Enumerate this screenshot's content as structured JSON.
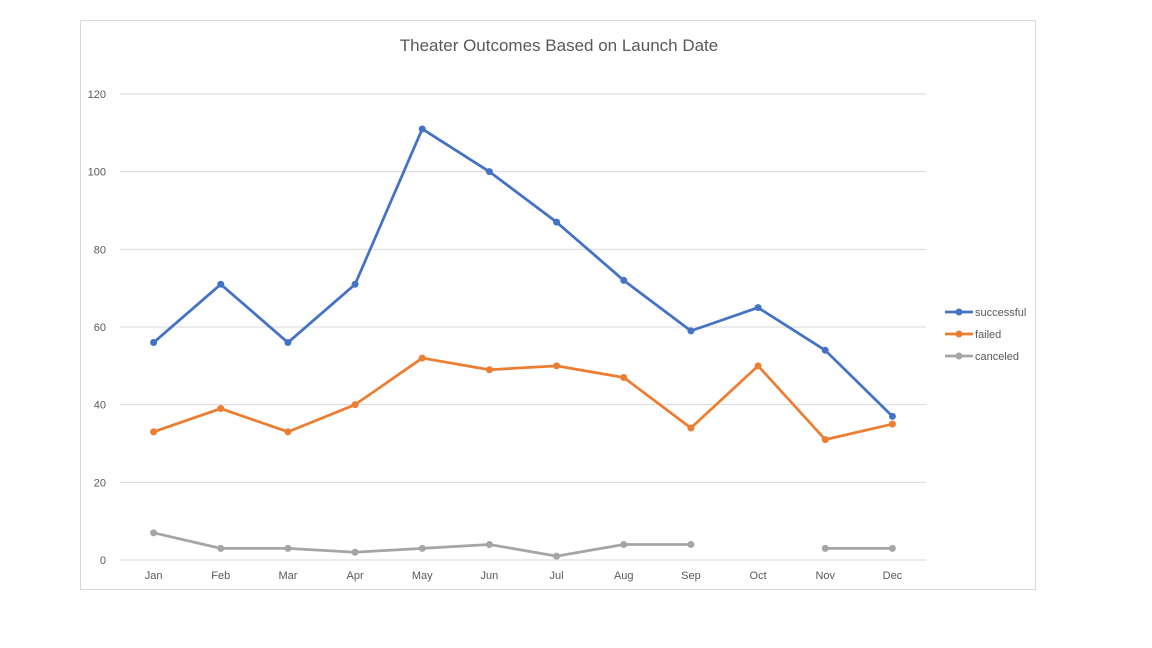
{
  "chart_data": {
    "type": "line",
    "title": "Theater Outcomes Based on Launch Date",
    "xlabel": "",
    "ylabel": "",
    "categories": [
      "Jan",
      "Feb",
      "Mar",
      "Apr",
      "May",
      "Jun",
      "Jul",
      "Aug",
      "Sep",
      "Oct",
      "Nov",
      "Dec"
    ],
    "ylim": [
      0,
      120
    ],
    "yticks": [
      0,
      20,
      40,
      60,
      80,
      100,
      120
    ],
    "grid": true,
    "legend_position": "right",
    "series": [
      {
        "name": "successful",
        "color": "#4472c4",
        "values": [
          56,
          71,
          56,
          71,
          111,
          100,
          87,
          72,
          59,
          65,
          54,
          37
        ]
      },
      {
        "name": "failed",
        "color": "#ed7d31",
        "values": [
          33,
          39,
          33,
          40,
          52,
          49,
          50,
          47,
          34,
          50,
          31,
          35
        ]
      },
      {
        "name": "canceled",
        "color": "#a5a5a5",
        "values": [
          7,
          3,
          3,
          2,
          3,
          4,
          1,
          4,
          4,
          null,
          3,
          3
        ]
      }
    ]
  }
}
